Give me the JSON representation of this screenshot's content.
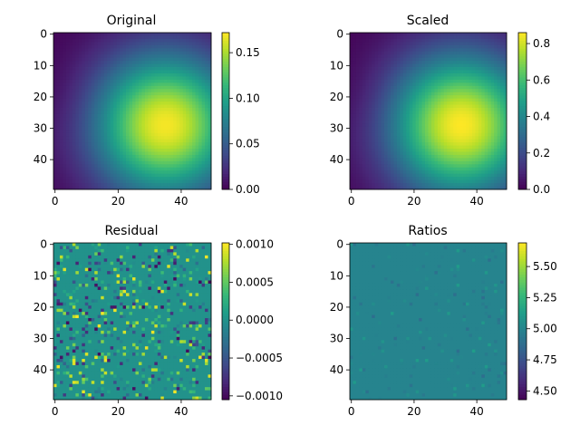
{
  "chart_data": [
    {
      "type": "heatmap",
      "title": "Original",
      "xlabel": "",
      "ylabel": "",
      "xticks": [
        "0",
        "20",
        "40"
      ],
      "yticks": [
        "0",
        "10",
        "20",
        "30",
        "40"
      ],
      "xlim": [
        -0.5,
        49.5
      ],
      "ylim": [
        49.5,
        -0.5
      ],
      "grid_size": [
        50,
        50
      ],
      "field": {
        "kind": "gaussian_bump",
        "peak_x": 35,
        "peak_y": 29,
        "sigma": 16,
        "min": 0.0,
        "max": 0.17
      },
      "colormap": "viridis",
      "colorbar": {
        "min": 0.0,
        "max": 0.172,
        "ticks": [
          "0.00",
          "0.05",
          "0.10",
          "0.15"
        ],
        "tick_values": [
          0.0,
          0.05,
          0.1,
          0.15
        ]
      }
    },
    {
      "type": "heatmap",
      "title": "Scaled",
      "xlabel": "",
      "ylabel": "",
      "xticks": [
        "0",
        "20",
        "40"
      ],
      "yticks": [
        "0",
        "10",
        "20",
        "30",
        "40"
      ],
      "xlim": [
        -0.5,
        49.5
      ],
      "ylim": [
        49.5,
        -0.5
      ],
      "grid_size": [
        50,
        50
      ],
      "field": {
        "kind": "gaussian_bump",
        "peak_x": 35,
        "peak_y": 29,
        "sigma": 16,
        "min": 0.0,
        "max": 0.86
      },
      "colormap": "viridis",
      "colorbar": {
        "min": 0.0,
        "max": 0.86,
        "ticks": [
          "0.0",
          "0.2",
          "0.4",
          "0.6",
          "0.8"
        ],
        "tick_values": [
          0.0,
          0.2,
          0.4,
          0.6,
          0.8
        ]
      }
    },
    {
      "type": "heatmap",
      "title": "Residual",
      "xlabel": "",
      "ylabel": "",
      "xticks": [
        "0",
        "20",
        "40"
      ],
      "yticks": [
        "0",
        "10",
        "20",
        "30",
        "40"
      ],
      "xlim": [
        -0.5,
        49.5
      ],
      "ylim": [
        49.5,
        -0.5
      ],
      "grid_size": [
        50,
        50
      ],
      "field": {
        "kind": "sparse_noise",
        "base": 0.0,
        "amplitude": 0.001,
        "density": 0.22
      },
      "colormap": "viridis",
      "colorbar": {
        "min": -0.00105,
        "max": 0.00102,
        "ticks": [
          "−0.0010",
          "−0.0005",
          "0.0000",
          "0.0005",
          "0.0010"
        ],
        "tick_values": [
          -0.001,
          -0.0005,
          0.0,
          0.0005,
          0.001
        ]
      }
    },
    {
      "type": "heatmap",
      "title": "Ratios",
      "xlabel": "",
      "ylabel": "",
      "xticks": [
        "0",
        "20",
        "40"
      ],
      "yticks": [
        "0",
        "10",
        "20",
        "30",
        "40"
      ],
      "xlim": [
        -0.5,
        49.5
      ],
      "ylim": [
        49.5,
        -0.5
      ],
      "grid_size": [
        50,
        50
      ],
      "field": {
        "kind": "sparse_noise",
        "base": 5.0,
        "amplitude": 0.12,
        "density": 0.06
      },
      "colormap": "viridis",
      "colorbar": {
        "min": 4.43,
        "max": 5.69,
        "ticks": [
          "4.50",
          "4.75",
          "5.00",
          "5.25",
          "5.50"
        ],
        "tick_values": [
          4.5,
          4.75,
          5.0,
          5.25,
          5.5
        ]
      }
    }
  ]
}
